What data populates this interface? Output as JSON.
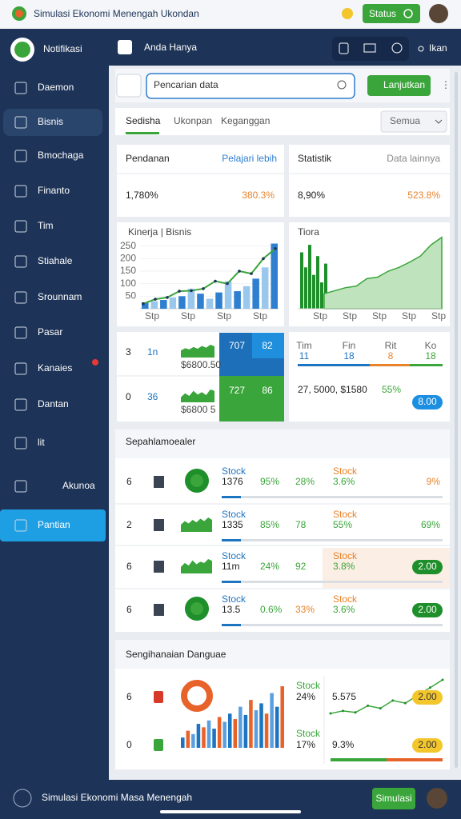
{
  "topbar": {
    "title": "Simulasi Ekonomi Menengah Ukondan",
    "status": "Status"
  },
  "sidebar": {
    "brand": "Notifikasi",
    "items": [
      "Daemon",
      "Bisnis",
      "Bmochaga",
      "Finanto",
      "Tim",
      "Stiahale",
      "Srounnam",
      "Pasar",
      "Kanaies",
      "Dantan",
      "lit",
      "Akunoa",
      "Pantian"
    ]
  },
  "header": {
    "title": "Anda Hanya",
    "menu": "Ikan"
  },
  "search": {
    "placeholder": "Pencarian data",
    "button": "Lanjutkan"
  },
  "tabs": {
    "items": [
      "Sedisha",
      "Ukonpan",
      "Keganggan"
    ],
    "filter": "Semua"
  },
  "cards": [
    {
      "title": "Pendanan",
      "link": "Pelajari lebih",
      "value": "1,780%",
      "value2": "380.3%"
    },
    {
      "title": "Statistik",
      "link": "Data lainnya",
      "value": "8,90%",
      "value2": "523.8%"
    }
  ],
  "charts": {
    "perf": {
      "legend": "Kinerja | Bisnis",
      "ylim": [
        0,
        300
      ],
      "yticks": [
        50,
        100,
        150,
        200,
        250
      ],
      "categories": [
        "Stp",
        "Stp",
        "Stp",
        "Stp"
      ],
      "colors": [
        "#2f7fd1",
        "#9ac8ec"
      ],
      "line_color": "#3aa53a",
      "bars": [
        25,
        30,
        35,
        45,
        50,
        80,
        60,
        40,
        65,
        110,
        70,
        90,
        120,
        165,
        260
      ],
      "line": [
        20,
        38,
        45,
        70,
        72,
        80,
        110,
        100,
        150,
        140,
        200,
        240
      ]
    },
    "growth": {
      "legend": "Tiora",
      "categories": [
        "Stp",
        "Stp",
        "Stp",
        "Stp",
        "Stp"
      ],
      "ylim": [
        0,
        100
      ],
      "color": "#1e8f2a",
      "bars": [
        75,
        55,
        85,
        45,
        70,
        35,
        60
      ],
      "area": [
        20,
        24,
        28,
        30,
        40,
        42,
        50,
        55,
        62,
        70,
        85,
        95
      ]
    }
  },
  "kpi": {
    "rows": [
      {
        "index": "3",
        "value": "1n",
        "spark": [
          30,
          40,
          35,
          45,
          38,
          50,
          42,
          55,
          48
        ],
        "caption": "$6800.50",
        "tile": "707",
        "tile2": "82"
      },
      {
        "index": "0",
        "value": "36",
        "spark": [
          20,
          35,
          25,
          45,
          30,
          40,
          28,
          50,
          45
        ],
        "caption": "$6800 5",
        "tile": "727",
        "tile2": "86"
      }
    ],
    "team": {
      "labels": [
        "Tim",
        "Fin",
        "Rit",
        "Ko"
      ],
      "values": [
        "11",
        "18",
        "8",
        "18"
      ],
      "summary": "27, 5000, $1580",
      "pct": "55%",
      "button": "8.00"
    }
  },
  "table": {
    "title": "Sepahlamoealer",
    "rows": [
      {
        "index": "6",
        "label": "Stock",
        "value": "1376",
        "pct1": "95%",
        "pct2": "28%",
        "label2": "Stock",
        "pct3": "3.6%",
        "end": "9%"
      },
      {
        "index": "2",
        "label": "Stock",
        "value": "1335",
        "pct1": "85%",
        "pct2": "78",
        "label2": "Stock",
        "pct3": "55%",
        "end": "69%",
        "spark": [
          30,
          45,
          35,
          50,
          40,
          55,
          45,
          60,
          50
        ]
      },
      {
        "index": "6",
        "label": "Stock",
        "value": "11m",
        "pct1": "24%",
        "pct2": "92",
        "label2": "Stock",
        "pct3": "3.8%",
        "button": "2.00",
        "spark": [
          25,
          40,
          30,
          50,
          35,
          45,
          40,
          55,
          48
        ]
      },
      {
        "index": "6",
        "label": "Stock",
        "value": "13.5",
        "pct1": "0.6%",
        "pct2": "33%",
        "label2": "Stock",
        "pct3": "3.6%",
        "button": "2.00"
      }
    ]
  },
  "bottom": {
    "title": "Sengihanaian Danguae",
    "colors": [
      "#1d74c0",
      "#e8632a",
      "#5aa0e0"
    ],
    "bars": [
      15,
      25,
      20,
      35,
      30,
      40,
      28,
      45,
      38,
      50,
      42,
      60,
      48,
      70,
      55,
      65,
      50,
      80,
      60,
      90
    ],
    "line": [
      20,
      25,
      22,
      35,
      30,
      45,
      40,
      55,
      70,
      85
    ],
    "rows": [
      {
        "index": "6",
        "label": "Stock",
        "pct": "24%",
        "value": "5.575",
        "button": "2.00"
      },
      {
        "index": "0",
        "label": "Stock",
        "pct": "17%",
        "value": "9.3%",
        "button": "2.00"
      }
    ]
  },
  "footer": {
    "text": "Simulasi Ekonomi Masa Menengah",
    "button": "Simulasi"
  }
}
